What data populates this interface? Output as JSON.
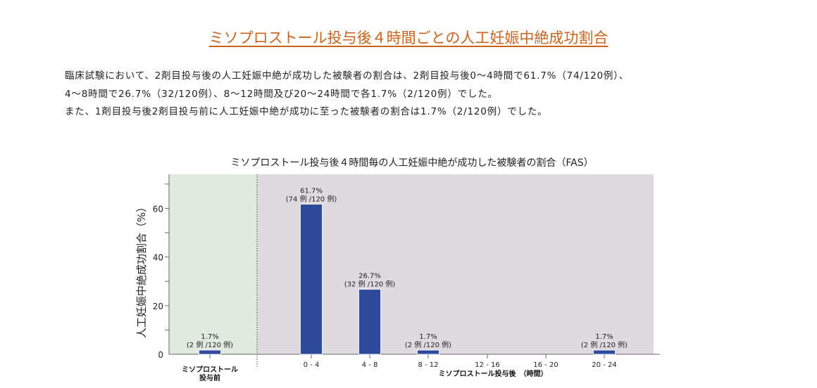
{
  "page_title": "ミソプロストール投与後４時間ごとの人工妊娠中絶成功割合",
  "paragraph": [
    "臨床試験において、2剤目投与後の人工妊娠中絶が成功した被験者の割合は、2剤目投与後0～4時間で61.7%（74/120例）、",
    "4～8時間で26.7%（32/120例）、8～12時間及び20～24時間で各1.7%（2/120例）でした。",
    "また、1剤目投与後2剤目投与前に人工妊娠中絶が成功に至った被験者の割合は1.7%（2/120例）でした。"
  ],
  "chart_data": {
    "type": "bar",
    "title": "ミソプロストール投与後４時間毎の人工妊娠中絶が成功した被験者の割合（FAS）",
    "ylabel": "人工妊娠中絶成功割合（%）",
    "xlabel": "ミソプロストール投与後　（時間）",
    "pre_label": [
      "ミソプロストール",
      "投与前"
    ],
    "categories": [
      "pre",
      "0 - 4",
      "4 - 8",
      "8 - 12",
      "12 - 16",
      "16 - 20",
      "20 - 24"
    ],
    "values": [
      1.7,
      61.7,
      26.7,
      1.7,
      0,
      0,
      1.7
    ],
    "data_labels": [
      [
        "1.7%",
        "(2 例 /120 例)"
      ],
      [
        "61.7%",
        "(74 例 /120 例)"
      ],
      [
        "26.7%",
        "(32 例 /120 例)"
      ],
      [
        "1.7%",
        "(2 例 /120 例)"
      ],
      null,
      null,
      [
        "1.7%",
        "(2 例 /120 例)"
      ]
    ],
    "yticks": [
      0,
      20,
      40,
      60
    ],
    "ylim": [
      0,
      74
    ],
    "colors": {
      "bar": "#2e4a9c",
      "pre_region": "#e0eadf",
      "post_region": "#dfd9e1"
    }
  }
}
